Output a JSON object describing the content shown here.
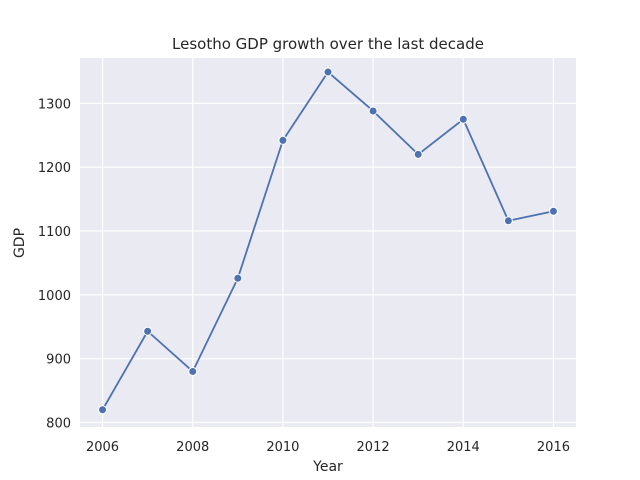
{
  "chart_data": {
    "type": "line",
    "title": "Lesotho GDP growth over the last decade",
    "xlabel": "Year",
    "ylabel": "GDP",
    "x": [
      2006,
      2007,
      2008,
      2009,
      2010,
      2011,
      2012,
      2013,
      2014,
      2015,
      2016
    ],
    "series": [
      {
        "values": [
          820,
          943,
          880,
          1026,
          1242,
          1349,
          1288,
          1220,
          1275,
          1116,
          1131
        ],
        "color": "#4c72b0",
        "marker": "circle"
      }
    ],
    "xlim": [
      2005.5,
      2016.5
    ],
    "ylim": [
      793,
      1371
    ],
    "xticks": [
      2006,
      2008,
      2010,
      2012,
      2014,
      2016
    ],
    "yticks": [
      800,
      900,
      1000,
      1100,
      1200,
      1300
    ],
    "grid": true,
    "legend": "none",
    "background_color": "#eaeaf2"
  }
}
